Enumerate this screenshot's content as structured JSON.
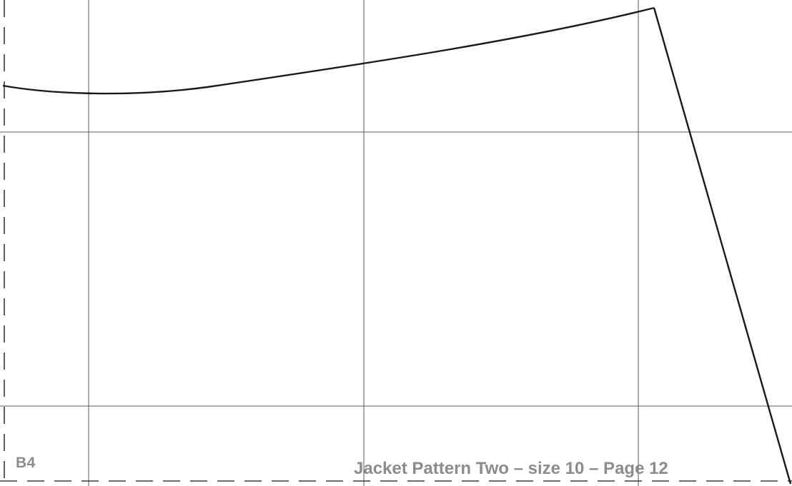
{
  "page": {
    "tile_label": "B4",
    "caption": "Jacket Pattern Two – size 10 – Page 12"
  },
  "colors": {
    "pattern_line": "#1a1a1a",
    "grid_line": "#5a5a5a",
    "label_text": "#8c8c8c",
    "background": "#ffffff"
  }
}
